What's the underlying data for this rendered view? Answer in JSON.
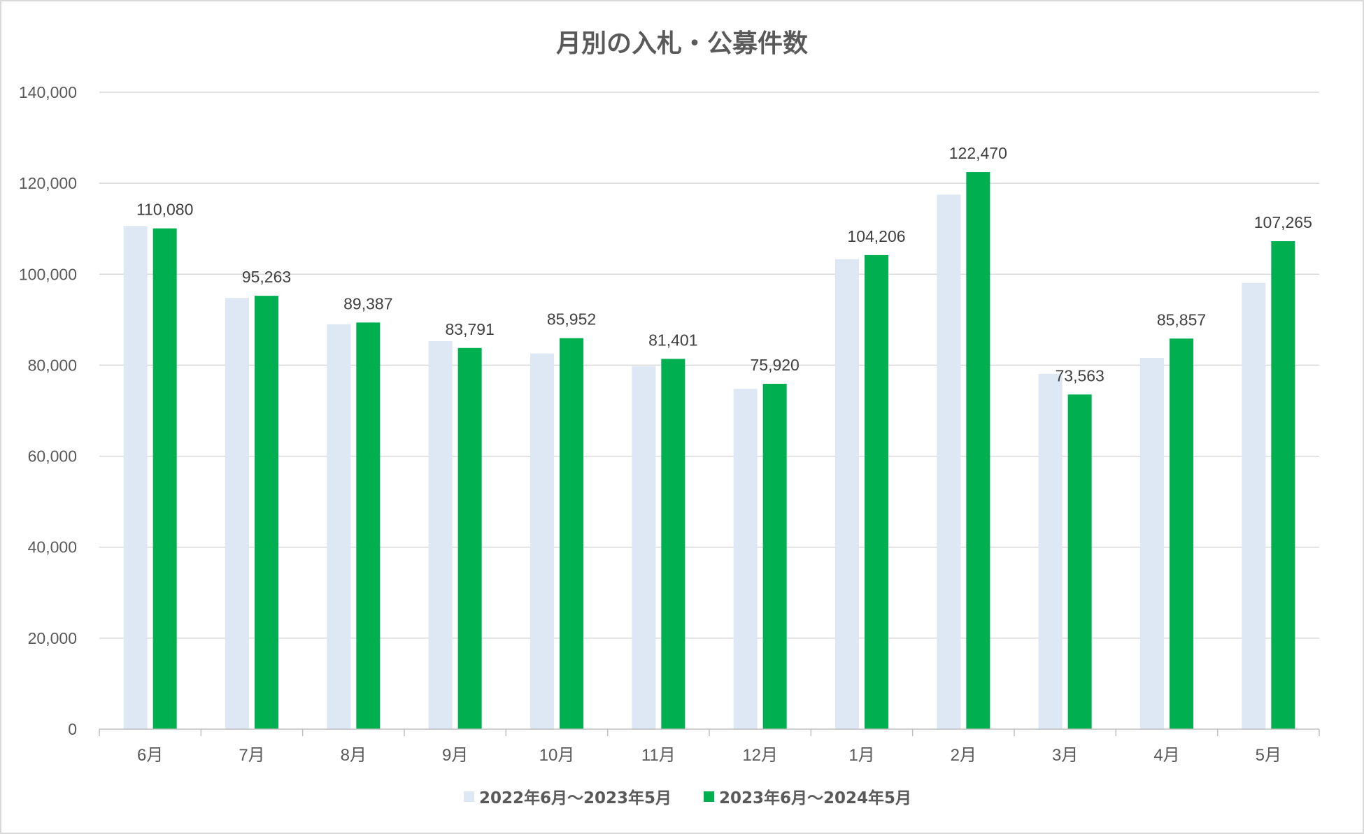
{
  "chart_data": {
    "type": "bar",
    "title": "月別の入札・公募件数",
    "categories": [
      "6月",
      "7月",
      "8月",
      "9月",
      "10月",
      "11月",
      "12月",
      "1月",
      "2月",
      "3月",
      "4月",
      "5月"
    ],
    "series": [
      {
        "name": "2022年6月～2023年5月",
        "color": "#dde8f4",
        "values": [
          110600,
          94800,
          89000,
          85300,
          82600,
          79800,
          74800,
          103300,
          117500,
          78100,
          81600,
          98100
        ],
        "labels": [
          "",
          "",
          "",
          "",
          "",
          "",
          "",
          "",
          "",
          "",
          "",
          ""
        ]
      },
      {
        "name": "2023年6月～2024年5月",
        "color": "#00b050",
        "values": [
          110080,
          95263,
          89387,
          83791,
          85952,
          81401,
          75920,
          104206,
          122470,
          73563,
          85857,
          107265
        ],
        "labels": [
          "110,080",
          "95,263",
          "89,387",
          "83,791",
          "85,952",
          "81,401",
          "75,920",
          "104,206",
          "122,470",
          "73,563",
          "85,857",
          "107,265"
        ]
      }
    ],
    "ylim": [
      0,
      140000
    ],
    "yticks": [
      "0",
      "20,000",
      "40,000",
      "60,000",
      "80,000",
      "100,000",
      "120,000",
      "140,000"
    ],
    "grid": true,
    "legend_position": "bottom",
    "xlabel": "",
    "ylabel": ""
  }
}
